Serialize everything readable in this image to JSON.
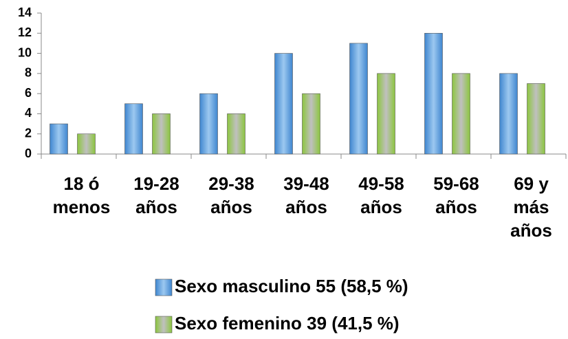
{
  "chart_data": {
    "type": "bar",
    "categories": [
      "18 ó menos",
      "19-28 años",
      "29-38 años",
      "39-48 años",
      "49-58 años",
      "59-68 años",
      "69 y más años"
    ],
    "series": [
      {
        "name": "Sexo masculino 55 (58,5 %)",
        "color": "#3f86cf",
        "values": [
          3,
          5,
          6,
          10,
          11,
          12,
          8
        ]
      },
      {
        "name": "Sexo femenino 39 (41,5 %)",
        "color": "#8cc63e",
        "values": [
          2,
          4,
          4,
          6,
          8,
          8,
          7
        ]
      }
    ],
    "ylim": [
      0,
      14
    ],
    "yticks": [
      0,
      2,
      4,
      6,
      8,
      10,
      12,
      14
    ],
    "grid": false
  }
}
